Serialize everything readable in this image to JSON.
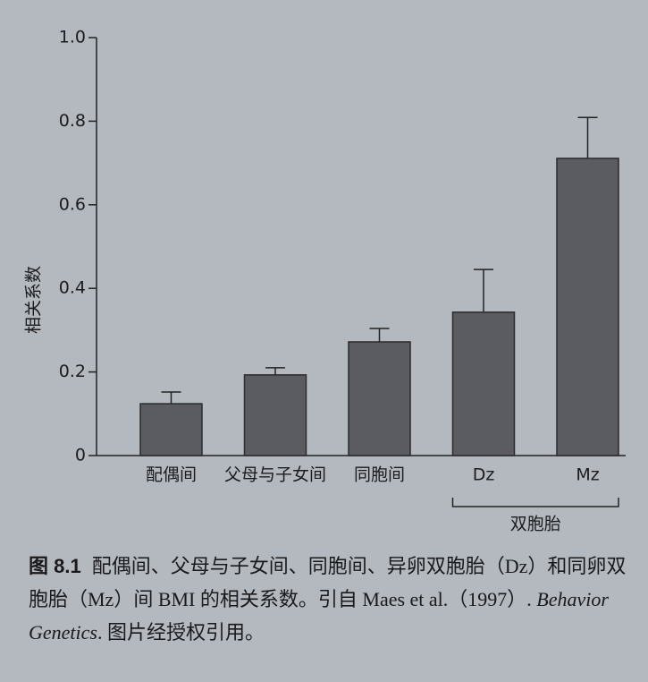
{
  "chart_data": {
    "type": "bar",
    "y_label": "相关系数",
    "categories": [
      "配偶间",
      "父母与子女间",
      "同胞间",
      "Dz",
      "Mz"
    ],
    "values": [
      0.124,
      0.193,
      0.272,
      0.343,
      0.711
    ],
    "errors": [
      0.028,
      0.017,
      0.032,
      0.102,
      0.098
    ],
    "color": "#5b5c61",
    "ylim": [
      0,
      1
    ],
    "yticks": [
      0,
      0.2,
      0.4,
      0.6,
      0.8,
      {
        "value": 1,
        "label": "1.0"
      }
    ],
    "groups": [
      {
        "label": "双胞胎",
        "members": [
          "Dz",
          "Mz"
        ]
      }
    ]
  },
  "caption": {
    "label": "图 8.1",
    "text": "配偶间、父母与子女间、同胞间、异卵双胞胎（Dz）和同卵双胞胎（Mz）间 BMI 的相关系数。引自 Maes et al.（1997）. ",
    "journal": "Behavior Genetics",
    "note": ". 图片经授权引用。"
  }
}
